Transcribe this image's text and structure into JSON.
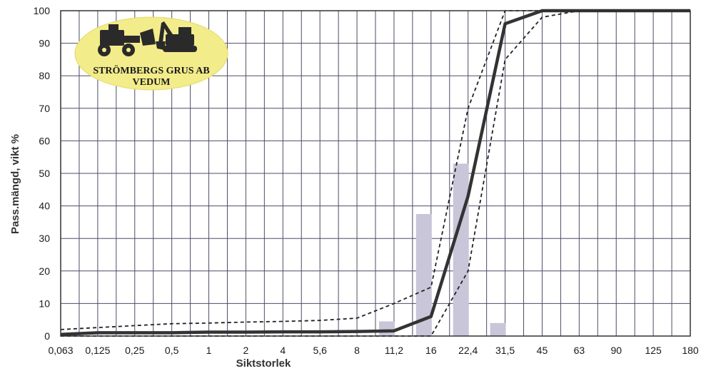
{
  "chart_data": {
    "type": "line",
    "xlabel": "Siktstorlek",
    "ylabel": "Pass.mängd, vikt %",
    "x_scale": "categorical-log",
    "categories": [
      "0,063",
      "0,125",
      "0,25",
      "0,5",
      "1",
      "2",
      "4",
      "5,6",
      "8",
      "11,2",
      "16",
      "22,4",
      "31,5",
      "45",
      "63",
      "90",
      "125",
      "180"
    ],
    "yticks": [
      "0",
      "10",
      "20",
      "30",
      "40",
      "50",
      "60",
      "70",
      "80",
      "90",
      "100"
    ],
    "ylim": [
      0,
      100
    ],
    "grid": true,
    "series": [
      {
        "name": "",
        "style": "solid-thick",
        "color": "#333333",
        "values": [
          0.5,
          1,
          1,
          1,
          1.2,
          1.2,
          1.3,
          1.3,
          1.4,
          1.6,
          6,
          43,
          96,
          100,
          100,
          100,
          100,
          100
        ]
      },
      {
        "name": "",
        "style": "dashed-upper",
        "color": "#222222",
        "values": [
          2,
          2.6,
          3.2,
          3.8,
          4.0,
          4.3,
          4.5,
          4.8,
          5.5,
          10,
          15,
          70,
          100,
          100,
          100,
          100,
          100,
          100
        ]
      },
      {
        "name": "",
        "style": "dashed-lower",
        "color": "#222222",
        "values": [
          0,
          0,
          0,
          0,
          0,
          0,
          0,
          0,
          0,
          0,
          0,
          20,
          85,
          98,
          100,
          100,
          100,
          100
        ]
      }
    ],
    "bars": {
      "color": "#c8c6d8",
      "categories": [
        "11,2",
        "16",
        "22,4",
        "31,5"
      ],
      "values": [
        4.5,
        37.5,
        53,
        4
      ]
    }
  },
  "logo": {
    "line1": "STRÖMBERGS GRUS AB",
    "line2": "VEDUM",
    "fill": "#f3ec8a"
  }
}
